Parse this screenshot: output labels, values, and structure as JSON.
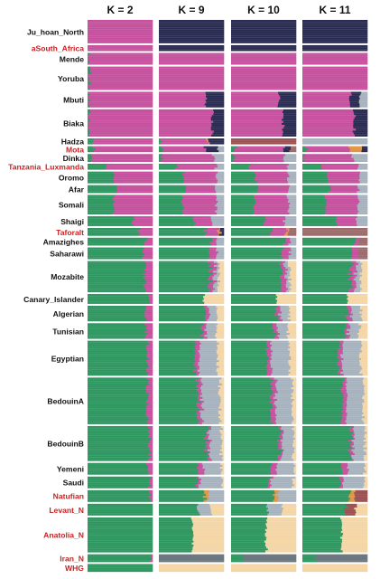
{
  "chart_data": {
    "type": "stacked-bar (ADMIXTURE)",
    "panels": [
      "K = 2",
      "K = 9",
      "K = 10",
      "K = 11"
    ],
    "colors": {
      "African": "#c6509e",
      "EurasianNearEast": "#2e9760",
      "Hunter-gatherer": "#2a2b52",
      "Hadza": "#9b5150",
      "Levant": "#a6b2bd",
      "Anatolia": "#f4d6a6",
      "Iran": "#6a757c",
      "Taforalt": "#9c6a6a",
      "Minor": "#e09444"
    },
    "populations": [
      {
        "name": "Ju_hoan_North",
        "ancient": false,
        "n": 12,
        "k2": {
          "African": 1.0
        },
        "k9": {
          "Hunter-gatherer": 1.0
        },
        "k10": {
          "Hunter-gatherer": 1.0
        },
        "k11": {
          "Hunter-gatherer": 1.0
        }
      },
      {
        "name": "aSouth_Africa",
        "ancient": true,
        "n": 3,
        "k2": {
          "African": 1.0
        },
        "k9": {
          "Hunter-gatherer": 1.0
        },
        "k10": {
          "Hunter-gatherer": 1.0
        },
        "k11": {
          "Hunter-gatherer": 1.0
        }
      },
      {
        "name": "Mende",
        "ancient": false,
        "n": 6,
        "k2": {
          "EurasianNearEast": 0.03,
          "African": 0.97
        },
        "k9": {
          "African": 1.0
        },
        "k10": {
          "African": 1.0
        },
        "k11": {
          "African": 1.0
        }
      },
      {
        "name": "Yoruba",
        "ancient": false,
        "n": 12,
        "k2": {
          "EurasianNearEast": 0.03,
          "African": 0.97
        },
        "k9": {
          "African": 1.0
        },
        "k10": {
          "African": 1.0
        },
        "k11": {
          "African": 1.0
        }
      },
      {
        "name": "Mbuti",
        "ancient": false,
        "n": 8,
        "k2": {
          "EurasianNearEast": 0.02,
          "African": 0.98
        },
        "k9": {
          "African": 0.72,
          "Hunter-gatherer": 0.28
        },
        "k10": {
          "African": 0.74,
          "Hunter-gatherer": 0.26
        },
        "k11": {
          "African": 0.74,
          "Hunter-gatherer": 0.14,
          "Levant": 0.12
        }
      },
      {
        "name": "Biaka",
        "ancient": false,
        "n": 14,
        "k2": {
          "EurasianNearEast": 0.02,
          "African": 0.98
        },
        "k9": {
          "African": 0.82,
          "Hunter-gatherer": 0.18
        },
        "k10": {
          "African": 0.8,
          "Hunter-gatherer": 0.2
        },
        "k11": {
          "African": 0.8,
          "Hunter-gatherer": 0.2
        }
      },
      {
        "name": "Hadza",
        "ancient": false,
        "n": 3,
        "k2": {
          "EurasianNearEast": 0.08,
          "African": 0.92
        },
        "k9": {
          "EurasianNearEast": 0.04,
          "African": 0.71,
          "Minor": 0.02,
          "Hunter-gatherer": 0.23
        },
        "k10": {
          "Hadza": 1.0
        },
        "k11": {
          "Levant": 1.0
        }
      },
      {
        "name": "Mota",
        "ancient": true,
        "n": 3,
        "k2": {
          "EurasianNearEast": 0.1,
          "African": 0.9
        },
        "k9": {
          "EurasianNearEast": 0.06,
          "African": 0.65,
          "Hunter-gatherer": 0.19,
          "Levant": 0.1
        },
        "k10": {
          "EurasianNearEast": 0.06,
          "African": 0.74,
          "Hunter-gatherer": 0.1,
          "Taforalt": 0.1
        },
        "k11": {
          "EurasianNearEast": 0.06,
          "African": 0.66,
          "Hunter-gatherer": 0.08,
          "Minor": 0.2
        }
      },
      {
        "name": "Dinka",
        "ancient": false,
        "n": 4,
        "k2": {
          "EurasianNearEast": 0.06,
          "African": 0.94
        },
        "k9": {
          "EurasianNearEast": 0.04,
          "African": 0.8,
          "Levant": 0.16
        },
        "k10": {
          "EurasianNearEast": 0.04,
          "African": 0.78,
          "Levant": 0.18
        },
        "k11": {
          "EurasianNearEast": 0.04,
          "African": 0.74,
          "Levant": 0.22
        }
      },
      {
        "name": "Tanzania_Luxmanda",
        "ancient": true,
        "n": 3,
        "k2": {
          "EurasianNearEast": 0.3,
          "African": 0.7
        },
        "k9": {
          "EurasianNearEast": 0.28,
          "African": 0.6,
          "Levant": 0.12
        },
        "k10": {
          "EurasianNearEast": 0.28,
          "African": 0.6,
          "Levant": 0.12
        },
        "k11": {
          "EurasianNearEast": 0.28,
          "African": 0.58,
          "Levant": 0.14
        }
      },
      {
        "name": "Oromo",
        "ancient": false,
        "n": 6,
        "k2": {
          "EurasianNearEast": 0.4,
          "African": 0.6
        },
        "k9": {
          "EurasianNearEast": 0.38,
          "African": 0.52,
          "Levant": 0.1
        },
        "k10": {
          "EurasianNearEast": 0.38,
          "African": 0.5,
          "Levant": 0.12
        },
        "k11": {
          "EurasianNearEast": 0.38,
          "African": 0.48,
          "Levant": 0.14
        }
      },
      {
        "name": "Afar",
        "ancient": false,
        "n": 4,
        "k2": {
          "EurasianNearEast": 0.45,
          "African": 0.55
        },
        "k9": {
          "EurasianNearEast": 0.42,
          "African": 0.46,
          "Levant": 0.12
        },
        "k10": {
          "EurasianNearEast": 0.42,
          "African": 0.46,
          "Levant": 0.12
        },
        "k11": {
          "EurasianNearEast": 0.42,
          "African": 0.44,
          "Levant": 0.14
        }
      },
      {
        "name": "Somali",
        "ancient": false,
        "n": 10,
        "k2": {
          "EurasianNearEast": 0.4,
          "African": 0.6
        },
        "k9": {
          "EurasianNearEast": 0.36,
          "African": 0.52,
          "Levant": 0.12
        },
        "k10": {
          "EurasianNearEast": 0.36,
          "African": 0.52,
          "Levant": 0.12
        },
        "k11": {
          "EurasianNearEast": 0.36,
          "African": 0.5,
          "Levant": 0.14
        }
      },
      {
        "name": "Shaigi",
        "ancient": false,
        "n": 5,
        "k2": {
          "EurasianNearEast": 0.7,
          "African": 0.3
        },
        "k9": {
          "EurasianNearEast": 0.54,
          "African": 0.28,
          "Levant": 0.18
        },
        "k10": {
          "EurasianNearEast": 0.52,
          "African": 0.3,
          "Levant": 0.18
        },
        "k11": {
          "EurasianNearEast": 0.52,
          "African": 0.3,
          "Levant": 0.18
        }
      },
      {
        "name": "Taforalt",
        "ancient": true,
        "n": 4,
        "k2": {
          "EurasianNearEast": 0.8,
          "African": 0.2
        },
        "k9": {
          "EurasianNearEast": 0.72,
          "African": 0.2,
          "Minor": 0.03,
          "Hunter-gatherer": 0.05
        },
        "k10": {
          "EurasianNearEast": 0.62,
          "African": 0.22,
          "Minor": 0.04,
          "Taforalt": 0.12
        },
        "k11": {
          "Taforalt": 1.0
        }
      },
      {
        "name": "Amazighes",
        "ancient": false,
        "n": 4,
        "k2": {
          "EurasianNearEast": 0.9,
          "African": 0.1
        },
        "k9": {
          "EurasianNearEast": 0.82,
          "African": 0.08,
          "Levant": 0.1
        },
        "k10": {
          "EurasianNearEast": 0.82,
          "African": 0.08,
          "Levant": 0.1
        },
        "k11": {
          "EurasianNearEast": 0.8,
          "African": 0.06,
          "Taforalt": 0.14
        }
      },
      {
        "name": "Saharawi",
        "ancient": false,
        "n": 6,
        "k2": {
          "EurasianNearEast": 0.85,
          "African": 0.15
        },
        "k9": {
          "EurasianNearEast": 0.78,
          "African": 0.12,
          "Levant": 0.1
        },
        "k10": {
          "EurasianNearEast": 0.78,
          "African": 0.12,
          "Levant": 0.1
        },
        "k11": {
          "EurasianNearEast": 0.76,
          "African": 0.1,
          "Taforalt": 0.14
        }
      },
      {
        "name": "Mozabite",
        "ancient": false,
        "n": 16,
        "k2": {
          "EurasianNearEast": 0.88,
          "African": 0.12
        },
        "k9": {
          "EurasianNearEast": 0.78,
          "African": 0.08,
          "Levant": 0.06,
          "Anatolia": 0.08
        },
        "k10": {
          "EurasianNearEast": 0.76,
          "African": 0.08,
          "Levant": 0.06,
          "Anatolia": 0.1
        },
        "k11": {
          "EurasianNearEast": 0.74,
          "African": 0.08,
          "Levant": 0.08,
          "Anatolia": 0.1
        }
      },
      {
        "name": "Canary_Islander",
        "ancient": false,
        "n": 5,
        "k2": {
          "EurasianNearEast": 0.96,
          "African": 0.04
        },
        "k9": {
          "EurasianNearEast": 0.68,
          "Anatolia": 0.32
        },
        "k10": {
          "EurasianNearEast": 0.7,
          "Anatolia": 0.3
        },
        "k11": {
          "EurasianNearEast": 0.7,
          "Anatolia": 0.3
        }
      },
      {
        "name": "Algerian",
        "ancient": false,
        "n": 8,
        "k2": {
          "EurasianNearEast": 0.88,
          "African": 0.12
        },
        "k9": {
          "EurasianNearEast": 0.72,
          "African": 0.06,
          "Levant": 0.12,
          "Anatolia": 0.1
        },
        "k10": {
          "EurasianNearEast": 0.7,
          "African": 0.06,
          "Levant": 0.14,
          "Anatolia": 0.1
        },
        "k11": {
          "EurasianNearEast": 0.7,
          "African": 0.06,
          "Levant": 0.14,
          "Anatolia": 0.1
        }
      },
      {
        "name": "Tunisian",
        "ancient": false,
        "n": 8,
        "k2": {
          "EurasianNearEast": 0.9,
          "African": 0.1
        },
        "k9": {
          "EurasianNearEast": 0.66,
          "African": 0.06,
          "Levant": 0.16,
          "Anatolia": 0.12
        },
        "k10": {
          "EurasianNearEast": 0.66,
          "African": 0.06,
          "Levant": 0.16,
          "Anatolia": 0.12
        },
        "k11": {
          "EurasianNearEast": 0.66,
          "African": 0.06,
          "Levant": 0.16,
          "Anatolia": 0.12
        }
      },
      {
        "name": "Egyptian",
        "ancient": false,
        "n": 18,
        "k2": {
          "EurasianNearEast": 0.92,
          "African": 0.08
        },
        "k9": {
          "EurasianNearEast": 0.56,
          "African": 0.06,
          "Levant": 0.28,
          "Anatolia": 0.1
        },
        "k10": {
          "EurasianNearEast": 0.56,
          "African": 0.06,
          "Levant": 0.28,
          "Anatolia": 0.1
        },
        "k11": {
          "EurasianNearEast": 0.56,
          "African": 0.06,
          "Levant": 0.28,
          "Anatolia": 0.1
        }
      },
      {
        "name": "BedouinA",
        "ancient": false,
        "n": 24,
        "k2": {
          "EurasianNearEast": 0.92,
          "African": 0.08
        },
        "k9": {
          "EurasianNearEast": 0.6,
          "African": 0.06,
          "Levant": 0.28,
          "Anatolia": 0.06
        },
        "k10": {
          "EurasianNearEast": 0.62,
          "African": 0.06,
          "Levant": 0.26,
          "Anatolia": 0.06
        },
        "k11": {
          "EurasianNearEast": 0.62,
          "African": 0.06,
          "Levant": 0.26,
          "Anatolia": 0.06
        }
      },
      {
        "name": "BedouinB",
        "ancient": false,
        "n": 18,
        "k2": {
          "EurasianNearEast": 0.95,
          "African": 0.05
        },
        "k9": {
          "EurasianNearEast": 0.74,
          "African": 0.04,
          "Levant": 0.18,
          "Anatolia": 0.04
        },
        "k10": {
          "EurasianNearEast": 0.74,
          "African": 0.04,
          "Levant": 0.18,
          "Anatolia": 0.04
        },
        "k11": {
          "EurasianNearEast": 0.74,
          "African": 0.04,
          "Levant": 0.18,
          "Anatolia": 0.04
        }
      },
      {
        "name": "Yemeni",
        "ancient": false,
        "n": 6,
        "k2": {
          "EurasianNearEast": 0.92,
          "African": 0.08
        },
        "k9": {
          "EurasianNearEast": 0.6,
          "African": 0.08,
          "Levant": 0.28,
          "Anatolia": 0.04
        },
        "k10": {
          "EurasianNearEast": 0.62,
          "African": 0.08,
          "Levant": 0.26,
          "Anatolia": 0.04
        },
        "k11": {
          "EurasianNearEast": 0.62,
          "African": 0.08,
          "Levant": 0.26,
          "Anatolia": 0.04
        }
      },
      {
        "name": "Saudi",
        "ancient": false,
        "n": 6,
        "k2": {
          "EurasianNearEast": 0.94,
          "African": 0.06
        },
        "k9": {
          "EurasianNearEast": 0.58,
          "African": 0.04,
          "Levant": 0.34,
          "Anatolia": 0.04
        },
        "k10": {
          "EurasianNearEast": 0.58,
          "African": 0.04,
          "Levant": 0.34,
          "Anatolia": 0.04
        },
        "k11": {
          "EurasianNearEast": 0.58,
          "African": 0.04,
          "Levant": 0.34,
          "Anatolia": 0.04
        }
      },
      {
        "name": "Natufian",
        "ancient": true,
        "n": 6,
        "k2": {
          "EurasianNearEast": 0.96,
          "African": 0.04
        },
        "k9": {
          "EurasianNearEast": 0.7,
          "Minor": 0.06,
          "Levant": 0.24
        },
        "k10": {
          "EurasianNearEast": 0.66,
          "Minor": 0.06,
          "Levant": 0.28
        },
        "k11": {
          "EurasianNearEast": 0.72,
          "Minor": 0.08,
          "Hadza": 0.2
        }
      },
      {
        "name": "Levant_N",
        "ancient": true,
        "n": 6,
        "k2": {
          "EurasianNearEast": 1.0
        },
        "k9": {
          "EurasianNearEast": 0.6,
          "Levant": 0.2,
          "Anatolia": 0.2
        },
        "k10": {
          "EurasianNearEast": 0.56,
          "Levant": 0.22,
          "Anatolia": 0.22
        },
        "k11": {
          "EurasianNearEast": 0.66,
          "Hadza": 0.16,
          "Anatolia": 0.18
        }
      },
      {
        "name": "Anatolia_N",
        "ancient": true,
        "n": 18,
        "k2": {
          "EurasianNearEast": 1.0
        },
        "k9": {
          "EurasianNearEast": 0.52,
          "Anatolia": 0.48
        },
        "k10": {
          "EurasianNearEast": 0.54,
          "Anatolia": 0.46
        },
        "k11": {
          "EurasianNearEast": 0.6,
          "Anatolia": 0.4
        }
      },
      {
        "name": "Iran_N",
        "ancient": true,
        "n": 4,
        "k2": {
          "EurasianNearEast": 0.98,
          "African": 0.02
        },
        "k9": {
          "Iran": 1.0
        },
        "k10": {
          "EurasianNearEast": 0.2,
          "Iran": 0.8
        },
        "k11": {
          "EurasianNearEast": 0.2,
          "Iran": 0.8
        }
      },
      {
        "name": "WHG",
        "ancient": true,
        "n": 4,
        "k2": {
          "EurasianNearEast": 1.0
        },
        "k9": {
          "Anatolia": 1.0
        },
        "k10": {
          "Anatolia": 1.0
        },
        "k11": {
          "Anatolia": 1.0
        }
      }
    ]
  }
}
